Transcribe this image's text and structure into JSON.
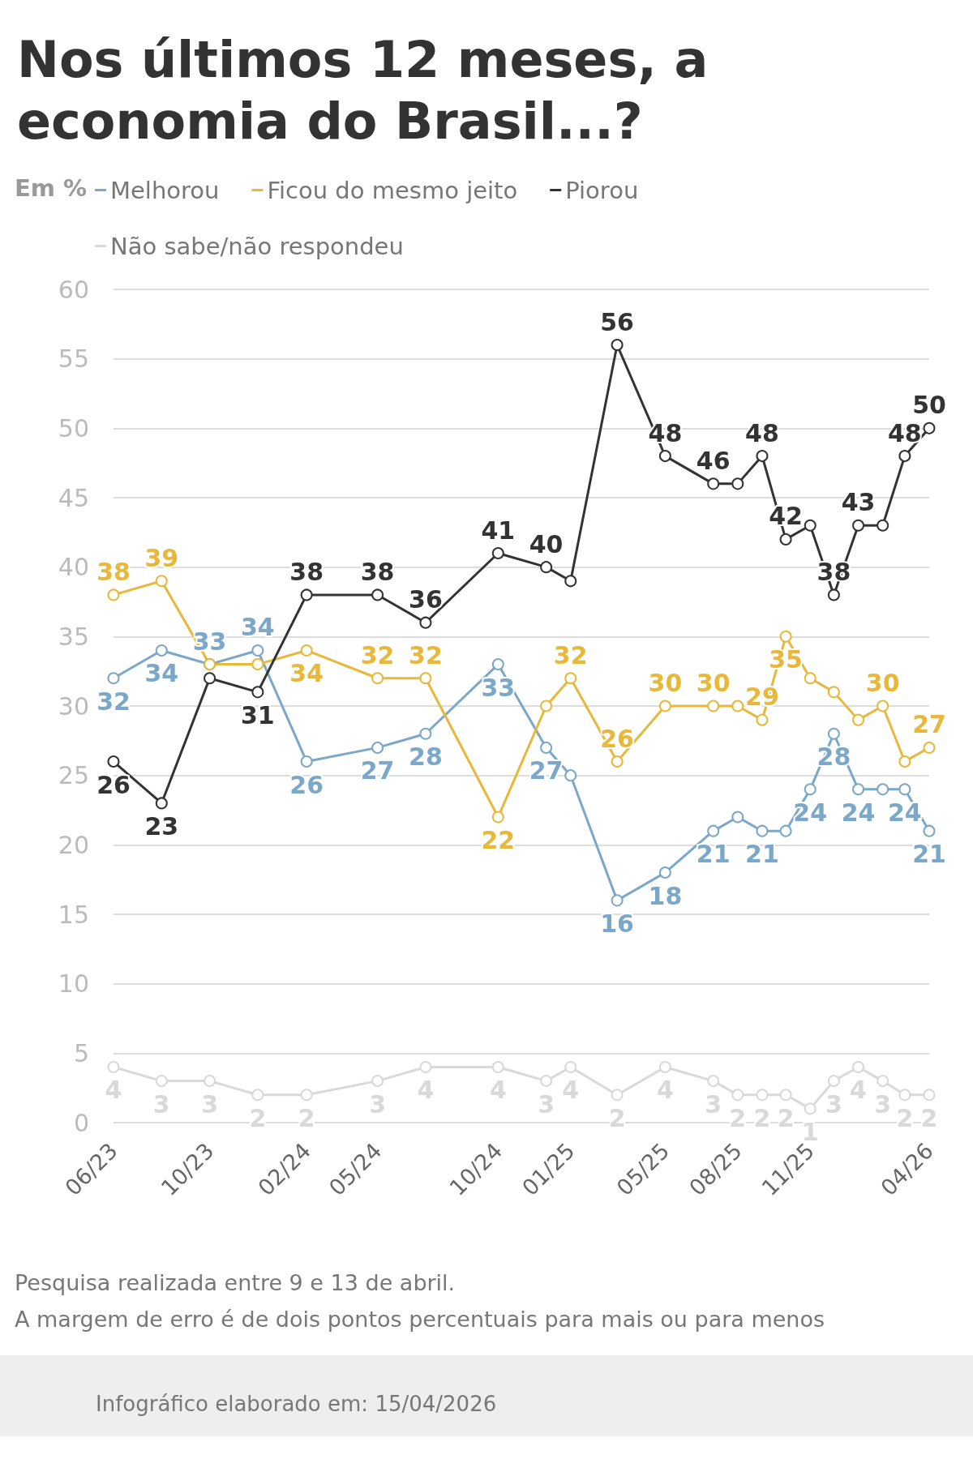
{
  "chart_data": {
    "type": "line",
    "title": "Nos últimos 12 meses, a\neconomia do Brasil...?",
    "ylabel": "Em %",
    "x": [
      "2023-06",
      "2023-08",
      "2023-10",
      "2023-12",
      "2024-02",
      "2024-05",
      "2024-07",
      "2024-10",
      "2024-12",
      "2025-01",
      "2025-03",
      "2025-05",
      "2025-07",
      "2025-08",
      "2025-09",
      "2025-10",
      "2025-11",
      "2025-12",
      "2026-01",
      "2026-02",
      "2026-03",
      "2026-04"
    ],
    "series": [
      {
        "name": "Melhorou",
        "color": "#7ba7c9",
        "values": [
          32,
          34,
          33,
          34,
          26,
          27,
          28,
          33,
          27,
          25,
          16,
          18,
          21,
          22,
          21,
          21,
          24,
          28,
          24,
          24,
          24,
          21
        ],
        "value_labels": [
          "32",
          "34",
          "33",
          "34",
          "26",
          "27",
          "28",
          "33",
          "27",
          null,
          "16",
          "18",
          "21",
          null,
          "21",
          null,
          "24",
          "28",
          "24",
          null,
          "24",
          "21"
        ]
      },
      {
        "name": "Ficou do mesmo jeito",
        "color": "#e8b83a",
        "values": [
          38,
          39,
          33,
          33,
          34,
          32,
          32,
          22,
          30,
          32,
          26,
          30,
          30,
          30,
          29,
          35,
          32,
          31,
          29,
          30,
          26,
          27
        ],
        "value_labels": [
          "38",
          "39",
          null,
          null,
          "34",
          "32",
          "32",
          "22",
          null,
          "32",
          "26",
          "30",
          "30",
          null,
          "29",
          "35",
          null,
          null,
          null,
          "30",
          null,
          "27"
        ]
      },
      {
        "name": "Piorou",
        "color": "#333333",
        "values": [
          26,
          23,
          32,
          31,
          38,
          38,
          36,
          41,
          40,
          39,
          56,
          48,
          46,
          46,
          48,
          42,
          43,
          38,
          43,
          43,
          48,
          50
        ],
        "value_labels": [
          "26",
          "23",
          null,
          "31",
          "38",
          "38",
          "36",
          "41",
          "40",
          null,
          "56",
          "48",
          "46",
          null,
          "48",
          "42",
          null,
          "38",
          "43",
          null,
          "48",
          "50"
        ]
      },
      {
        "name": "Não sabe/não respondeu",
        "color": "#d9d9d9",
        "values": [
          4,
          3,
          3,
          2,
          2,
          3,
          4,
          4,
          3,
          4,
          2,
          4,
          3,
          2,
          2,
          2,
          1,
          3,
          4,
          3,
          2,
          2
        ],
        "value_labels": [
          "4",
          "3",
          "3",
          "2",
          "2",
          "3",
          "4",
          "4",
          "3",
          "4",
          "2",
          "4",
          "3",
          "2",
          "2",
          "2",
          "1",
          "3",
          "4",
          "3",
          "2",
          "2"
        ]
      }
    ],
    "xlim": [
      "2023-06",
      "2026-04"
    ],
    "xticks": [
      {
        "value": "2023-06",
        "label": "06/23"
      },
      {
        "value": "2023-10",
        "label": "10/23"
      },
      {
        "value": "2024-02",
        "label": "02/24"
      },
      {
        "value": "2024-05",
        "label": "05/24"
      },
      {
        "value": "2024-10",
        "label": "10/24"
      },
      {
        "value": "2025-01",
        "label": "01/25"
      },
      {
        "value": "2025-05",
        "label": "05/25"
      },
      {
        "value": "2025-08",
        "label": "08/25"
      },
      {
        "value": "2025-11",
        "label": "11/25"
      },
      {
        "value": "2026-04",
        "label": "04/26"
      }
    ],
    "ylim": [
      0,
      60
    ],
    "yticks": [
      0,
      5,
      10,
      15,
      20,
      25,
      30,
      35,
      40,
      45,
      50,
      55,
      60
    ],
    "grid": "y",
    "legend": "top left",
    "marker": "circle",
    "line_style": "solid",
    "annotations": [
      "Pesquisa realizada entre 9 e 13 de abril.",
      "A margem de erro é de dois pontos percentuais para mais ou para menos",
      "Infográfico elaborado em: 15/04/2026"
    ]
  }
}
